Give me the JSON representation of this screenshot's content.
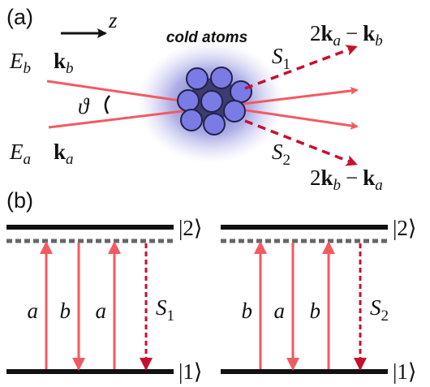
{
  "panel_a": {
    "label": "(a)",
    "axis": "z",
    "sample": "cold atoms",
    "beam_b": {
      "field": "E",
      "field_sub": "b",
      "wavevector": "k",
      "wavevector_sub": "b"
    },
    "angle": "ϑ",
    "beam_a": {
      "field": "E",
      "field_sub": "a",
      "wavevector": "k",
      "wavevector_sub": "a"
    },
    "signal_1": {
      "name": "S",
      "sub": "1",
      "wavevector": [
        "2",
        "k",
        "a",
        "−",
        "k",
        "b"
      ]
    },
    "signal_2": {
      "name": "S",
      "sub": "2",
      "wavevector": [
        "2",
        "k",
        "b",
        "−",
        "k",
        "a"
      ]
    }
  },
  "panel_b": {
    "label": "(b)",
    "schemes": [
      {
        "upper": "|2⟩",
        "lower": "|1⟩",
        "transitions": [
          "a",
          "b",
          "a"
        ],
        "signal": {
          "name": "S",
          "sub": "1"
        }
      },
      {
        "upper": "|2⟩",
        "lower": "|1⟩",
        "transitions": [
          "b",
          "a",
          "b"
        ],
        "signal": {
          "name": "S",
          "sub": "2"
        }
      }
    ]
  }
}
